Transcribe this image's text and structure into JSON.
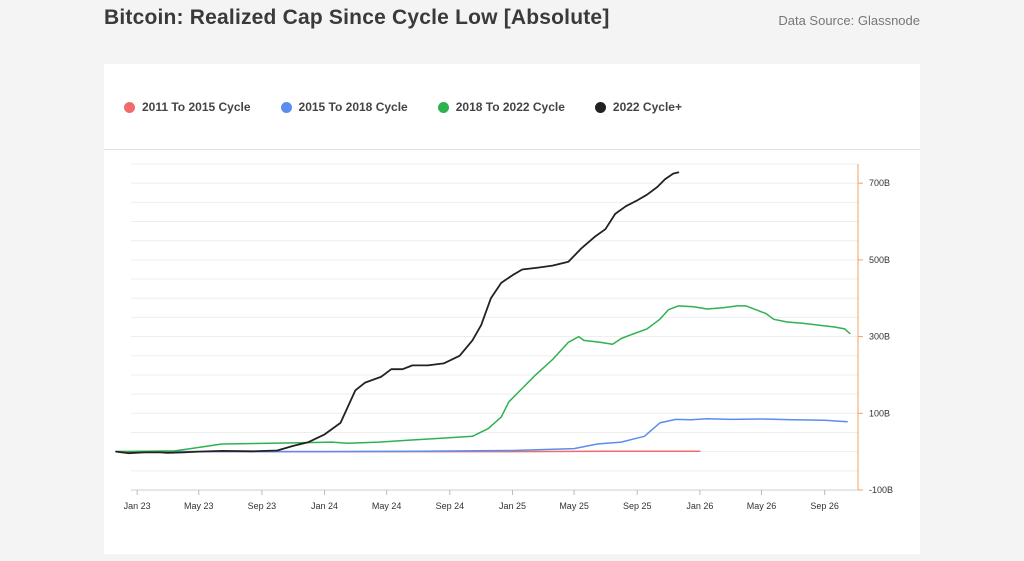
{
  "header": {
    "title": "Bitcoin: Realized Cap Since Cycle Low [Absolute]",
    "source": "Data Source: Glassnode"
  },
  "chart_data": {
    "type": "line",
    "title": "Bitcoin: Realized Cap Since Cycle Low [Absolute]",
    "xlabel": "",
    "ylabel": "",
    "x_ticks": [
      "Jan 23",
      "May 23",
      "Sep 23",
      "Jan 24",
      "May 24",
      "Sep 24",
      "Jan 25",
      "May 25",
      "Sep 25",
      "Jan 26",
      "May 26",
      "Sep 26"
    ],
    "y_ticks": [
      "700B",
      "500B",
      "300B",
      "100B",
      "-100B"
    ],
    "ylim": [
      -100,
      750
    ],
    "xlim": [
      "2022-12",
      "2026-11"
    ],
    "y_axis_position": "right",
    "grid": true,
    "legend_position": "top-left",
    "series": [
      {
        "name": "2011 To 2015 Cycle",
        "color": "#f26b6b",
        "points": [
          [
            "2022-11-21",
            0
          ],
          [
            "2023-06-01",
            0
          ],
          [
            "2024-01-01",
            0
          ],
          [
            "2024-07-01",
            0
          ],
          [
            "2025-01-01",
            0
          ],
          [
            "2025-07-01",
            1
          ],
          [
            "2026-01-01",
            1
          ]
        ]
      },
      {
        "name": "2015 To 2018 Cycle",
        "color": "#5b8def",
        "points": [
          [
            "2022-11-21",
            0
          ],
          [
            "2023-06-01",
            0
          ],
          [
            "2024-01-01",
            0
          ],
          [
            "2024-07-01",
            1
          ],
          [
            "2025-01-01",
            3
          ],
          [
            "2025-05-01",
            8
          ],
          [
            "2025-06-15",
            20
          ],
          [
            "2025-08-01",
            25
          ],
          [
            "2025-09-15",
            40
          ],
          [
            "2025-10-15",
            75
          ],
          [
            "2025-11-15",
            84
          ],
          [
            "2025-12-15",
            83
          ],
          [
            "2026-01-15",
            86
          ],
          [
            "2026-03-01",
            84
          ],
          [
            "2026-05-01",
            85
          ],
          [
            "2026-07-01",
            83
          ],
          [
            "2026-09-01",
            82
          ],
          [
            "2026-10-15",
            78
          ]
        ]
      },
      {
        "name": "2018 To 2022 Cycle",
        "color": "#2fb14f",
        "points": [
          [
            "2022-11-21",
            0
          ],
          [
            "2023-03-15",
            2
          ],
          [
            "2023-04-15",
            8
          ],
          [
            "2023-06-15",
            20
          ],
          [
            "2023-09-15",
            22
          ],
          [
            "2023-11-15",
            23
          ],
          [
            "2024-01-15",
            25
          ],
          [
            "2024-02-15",
            22
          ],
          [
            "2024-04-15",
            25
          ],
          [
            "2024-06-15",
            30
          ],
          [
            "2024-08-15",
            35
          ],
          [
            "2024-10-15",
            40
          ],
          [
            "2024-11-15",
            60
          ],
          [
            "2024-12-10",
            90
          ],
          [
            "2024-12-25",
            130
          ],
          [
            "2025-01-20",
            165
          ],
          [
            "2025-02-15",
            200
          ],
          [
            "2025-03-20",
            240
          ],
          [
            "2025-04-20",
            285
          ],
          [
            "2025-05-10",
            300
          ],
          [
            "2025-05-20",
            290
          ],
          [
            "2025-06-20",
            285
          ],
          [
            "2025-07-15",
            280
          ],
          [
            "2025-08-01",
            295
          ],
          [
            "2025-08-20",
            305
          ],
          [
            "2025-09-20",
            320
          ],
          [
            "2025-10-15",
            345
          ],
          [
            "2025-11-01",
            370
          ],
          [
            "2025-11-20",
            380
          ],
          [
            "2025-12-20",
            378
          ],
          [
            "2026-01-15",
            372
          ],
          [
            "2026-02-15",
            375
          ],
          [
            "2026-03-15",
            380
          ],
          [
            "2026-04-01",
            380
          ],
          [
            "2026-04-20",
            370
          ],
          [
            "2026-05-10",
            360
          ],
          [
            "2026-05-25",
            345
          ],
          [
            "2026-06-20",
            338
          ],
          [
            "2026-07-20",
            335
          ],
          [
            "2026-08-20",
            330
          ],
          [
            "2026-09-20",
            325
          ],
          [
            "2026-10-10",
            320
          ],
          [
            "2026-10-20",
            308
          ]
        ]
      },
      {
        "name": "2022 Cycle+",
        "color": "#222222",
        "points": [
          [
            "2022-11-21",
            0
          ],
          [
            "2022-12-15",
            -4
          ],
          [
            "2023-01-15",
            -2
          ],
          [
            "2023-02-15",
            -2
          ],
          [
            "2023-03-01",
            -3
          ],
          [
            "2023-04-01",
            -2
          ],
          [
            "2023-05-01",
            0
          ],
          [
            "2023-06-15",
            2
          ],
          [
            "2023-08-15",
            1
          ],
          [
            "2023-10-01",
            3
          ],
          [
            "2023-11-01",
            15
          ],
          [
            "2023-12-01",
            25
          ],
          [
            "2024-01-01",
            45
          ],
          [
            "2024-02-01",
            75
          ],
          [
            "2024-03-01",
            160
          ],
          [
            "2024-03-20",
            180
          ],
          [
            "2024-04-20",
            195
          ],
          [
            "2024-05-10",
            215
          ],
          [
            "2024-06-01",
            215
          ],
          [
            "2024-06-20",
            225
          ],
          [
            "2024-07-20",
            225
          ],
          [
            "2024-08-20",
            230
          ],
          [
            "2024-09-20",
            250
          ],
          [
            "2024-10-15",
            290
          ],
          [
            "2024-11-01",
            330
          ],
          [
            "2024-11-20",
            400
          ],
          [
            "2024-12-10",
            440
          ],
          [
            "2025-01-01",
            460
          ],
          [
            "2025-01-20",
            475
          ],
          [
            "2025-02-20",
            480
          ],
          [
            "2025-03-20",
            485
          ],
          [
            "2025-04-20",
            495
          ],
          [
            "2025-05-15",
            530
          ],
          [
            "2025-06-10",
            560
          ],
          [
            "2025-07-01",
            580
          ],
          [
            "2025-07-20",
            620
          ],
          [
            "2025-08-10",
            640
          ],
          [
            "2025-09-01",
            655
          ],
          [
            "2025-09-20",
            670
          ],
          [
            "2025-10-10",
            690
          ],
          [
            "2025-10-25",
            710
          ],
          [
            "2025-11-10",
            725
          ],
          [
            "2025-11-20",
            728
          ]
        ]
      }
    ]
  }
}
